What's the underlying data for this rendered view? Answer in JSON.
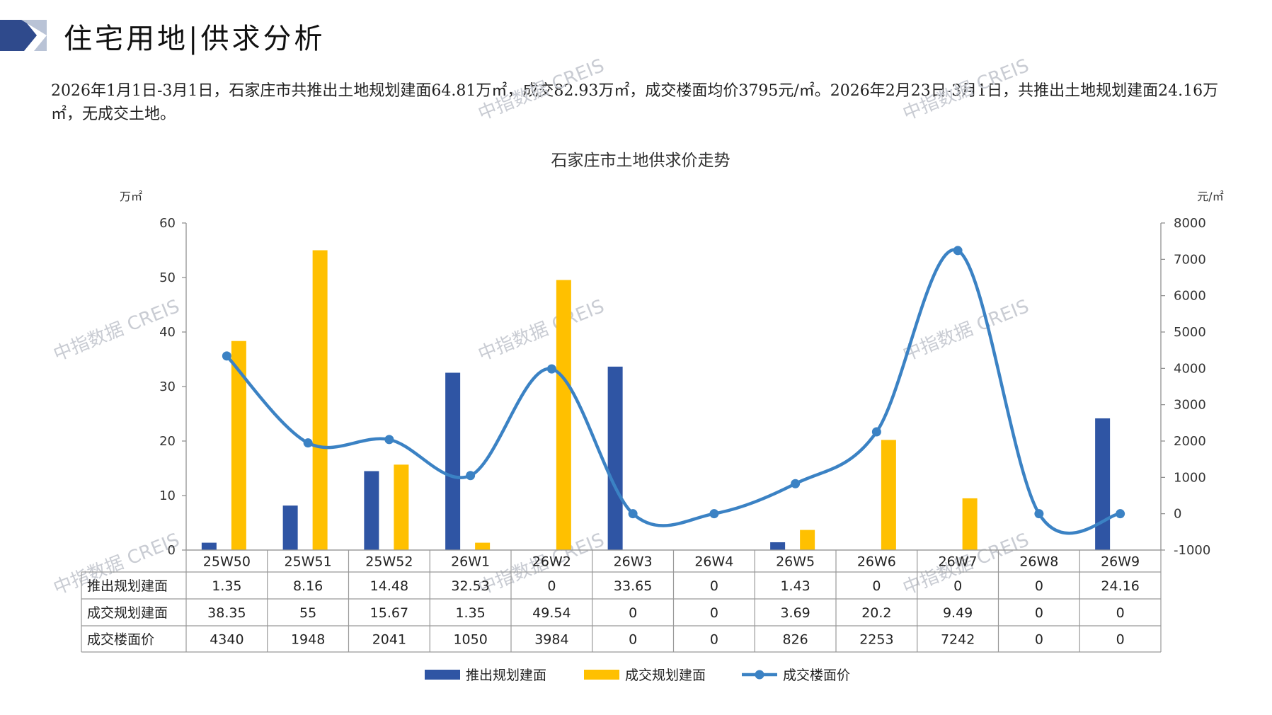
{
  "header": {
    "title": "住宅用地|供求分析",
    "colors": {
      "accent_dark": "#2f4a8c",
      "accent_light": "#b9c3d6"
    }
  },
  "summary": {
    "text": "2026年1月1日-3月1日，石家庄市共推出土地规划建面64.81万㎡，成交82.93万㎡，成交楼面均价3795元/㎡。2026年2月23日-3月1日，共推出土地规划建面24.16万㎡，无成交土地。"
  },
  "watermark": "中指数据 CREIS",
  "chart_data": {
    "type": "bar",
    "title": "石家庄市土地供求价走势",
    "categories": [
      "25W50",
      "25W51",
      "25W52",
      "26W1",
      "26W2",
      "26W3",
      "26W4",
      "26W5",
      "26W6",
      "26W7",
      "26W8",
      "26W9"
    ],
    "series": [
      {
        "name": "推出规划建面",
        "type": "bar",
        "axis": "left",
        "color": "#2f55a4",
        "values": [
          1.35,
          8.16,
          14.48,
          32.53,
          0,
          33.65,
          0,
          1.43,
          0,
          0,
          0,
          24.16
        ],
        "labels": [
          "1.35",
          "8.16",
          "14.48",
          "32.53",
          "0",
          "33.65",
          "0",
          "1.43",
          "0",
          "0",
          "0",
          "24.16"
        ]
      },
      {
        "name": "成交规划建面",
        "type": "bar",
        "axis": "left",
        "color": "#ffc000",
        "values": [
          38.35,
          55,
          15.67,
          1.35,
          49.54,
          0,
          0,
          3.69,
          20.2,
          9.49,
          0,
          0
        ],
        "labels": [
          "38.35",
          "55",
          "15.67",
          "1.35",
          "49.54",
          "0",
          "0",
          "3.69",
          "20.2",
          "9.49",
          "0",
          "0"
        ]
      },
      {
        "name": "成交楼面价",
        "type": "line",
        "axis": "right",
        "color": "#3b82c4",
        "values": [
          4340,
          1948,
          2041,
          1050,
          3984,
          0,
          0,
          826,
          2253,
          7242,
          0,
          0
        ],
        "labels": [
          "4340",
          "1948",
          "2041",
          "1050",
          "3984",
          "0",
          "0",
          "826",
          "2253",
          "7242",
          "0",
          "0"
        ]
      }
    ],
    "left_axis": {
      "unit": "万㎡",
      "min": 0,
      "max": 60,
      "step": 10,
      "ticks": [
        "0",
        "10",
        "20",
        "30",
        "40",
        "50",
        "60"
      ]
    },
    "right_axis": {
      "unit": "元/㎡",
      "min": -1000,
      "max": 8000,
      "step": 1000,
      "ticks": [
        "-1000",
        "0",
        "1000",
        "2000",
        "3000",
        "4000",
        "5000",
        "6000",
        "7000",
        "8000"
      ]
    },
    "legend": "bottom",
    "data_table": true,
    "grid": false
  }
}
